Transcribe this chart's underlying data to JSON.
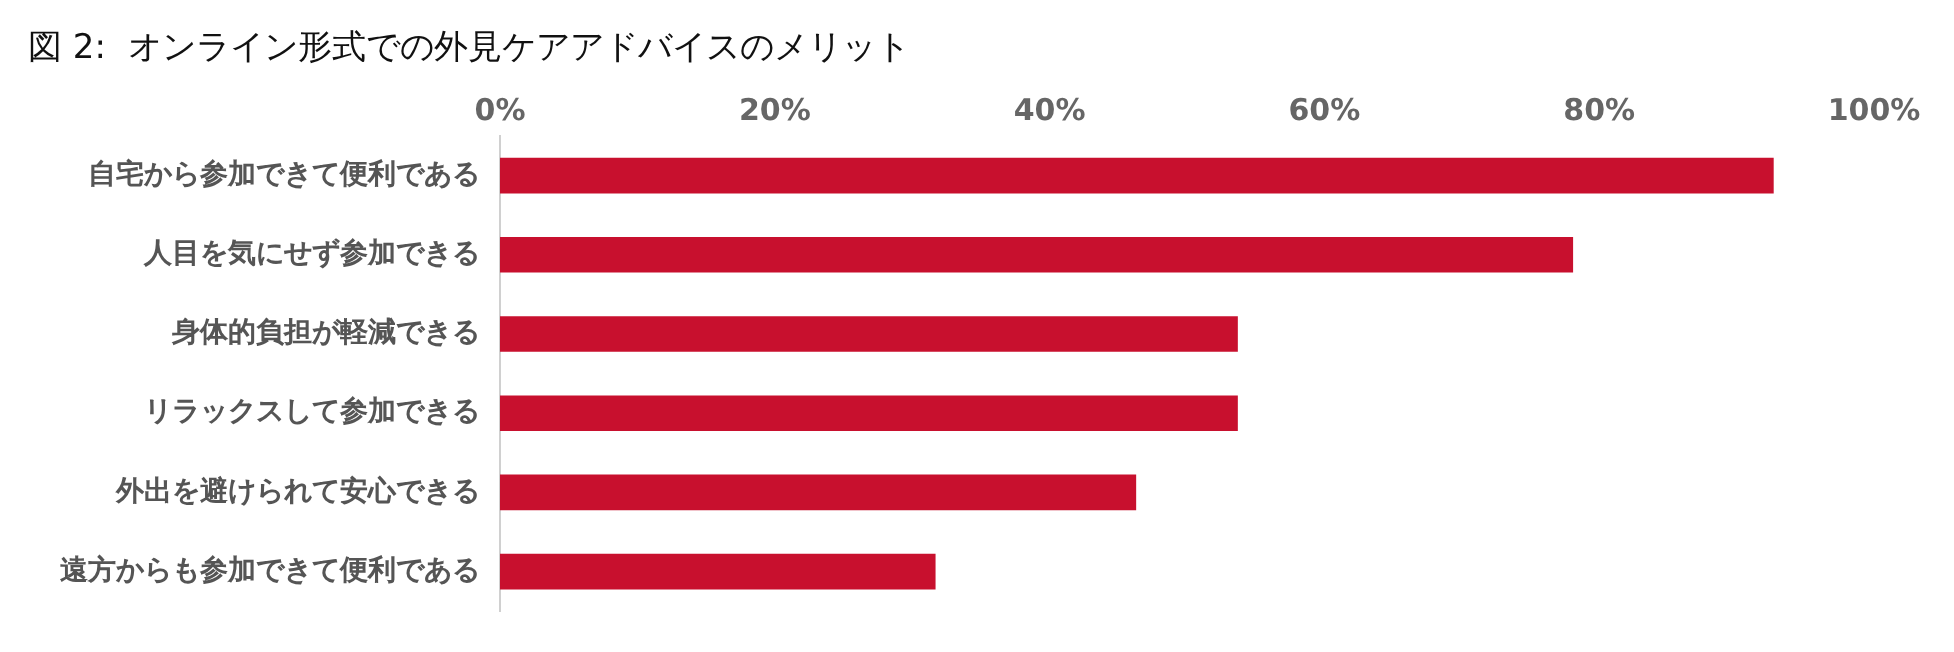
{
  "chart_data": {
    "type": "bar",
    "orientation": "horizontal",
    "title": "図 2:  オンライン形式での外見ケアアドバイスのメリット",
    "categories": [
      "自宅から参加できて便利である",
      "人目を気にせず参加できる",
      "身体的負担が軽減できる",
      "リラックスして参加できる",
      "外出を避けられて安心できる",
      "遠方からも参加できて便利である"
    ],
    "values": [
      92.7,
      78.1,
      53.7,
      53.7,
      46.3,
      31.7
    ],
    "color": "#c8102e",
    "xlim": [
      0,
      100
    ],
    "xticks": [
      {
        "value": 0,
        "label": "0%"
      },
      {
        "value": 20,
        "label": "20%"
      },
      {
        "value": 40,
        "label": "40%"
      },
      {
        "value": 60,
        "label": "60%"
      },
      {
        "value": 80,
        "label": "80%"
      },
      {
        "value": 100,
        "label": "100%"
      }
    ],
    "grid": false,
    "legend": false
  }
}
